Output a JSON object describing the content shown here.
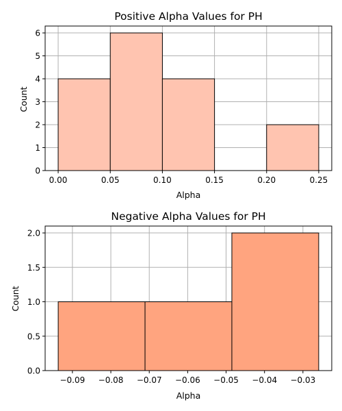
{
  "colors": {
    "positive_bar": "#ffc4b0",
    "negative_bar": "#ffa47f",
    "bar_edge": "#000000",
    "grid": "#b0b0b0"
  },
  "chart_data": [
    {
      "type": "bar",
      "title": "Positive Alpha Values for PH",
      "xlabel": "Alpha",
      "ylabel": "Count",
      "bins": [
        {
          "start": 0.0,
          "end": 0.05,
          "count": 4
        },
        {
          "start": 0.05,
          "end": 0.1,
          "count": 6
        },
        {
          "start": 0.1,
          "end": 0.15,
          "count": 4
        },
        {
          "start": 0.15,
          "end": 0.2,
          "count": 0
        },
        {
          "start": 0.2,
          "end": 0.25,
          "count": 2
        }
      ],
      "xlim": [
        -0.0125,
        0.2625
      ],
      "ylim": [
        0,
        6.3
      ],
      "xticks": [
        0.0,
        0.05,
        0.1,
        0.15,
        0.2,
        0.25
      ],
      "xtick_labels": [
        "0.00",
        "0.05",
        "0.10",
        "0.15",
        "0.20",
        "0.25"
      ],
      "yticks": [
        0,
        1,
        2,
        3,
        4,
        5,
        6
      ],
      "ytick_labels": [
        "0",
        "1",
        "2",
        "3",
        "4",
        "5",
        "6"
      ],
      "grid": true,
      "color_key": "positive_bar"
    },
    {
      "type": "bar",
      "title": "Negative Alpha Values for PH",
      "xlabel": "Alpha",
      "ylabel": "Count",
      "bins": [
        {
          "start": -0.0937,
          "end": -0.0711,
          "count": 1
        },
        {
          "start": -0.0711,
          "end": -0.0485,
          "count": 1
        },
        {
          "start": -0.0485,
          "end": -0.0259,
          "count": 2
        }
      ],
      "xlim": [
        -0.0971,
        -0.0225
      ],
      "ylim": [
        0,
        2.1
      ],
      "xticks": [
        -0.09,
        -0.08,
        -0.07,
        -0.06,
        -0.05,
        -0.04,
        -0.03
      ],
      "xtick_labels": [
        "−0.09",
        "−0.08",
        "−0.07",
        "−0.06",
        "−0.05",
        "−0.04",
        "−0.03"
      ],
      "yticks": [
        0,
        0.5,
        1.0,
        1.5,
        2.0
      ],
      "ytick_labels": [
        "0.0",
        "0.5",
        "1.0",
        "1.5",
        "2.0"
      ],
      "grid": true,
      "color_key": "negative_bar"
    }
  ]
}
